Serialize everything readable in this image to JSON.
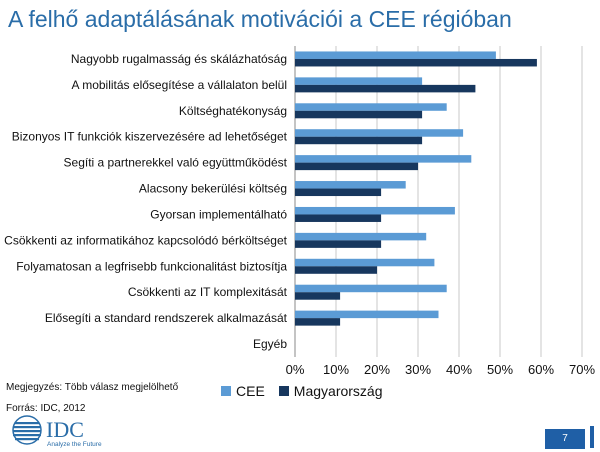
{
  "title": "A felhő adaptálásának motivációi a CEE régióban",
  "note": "Megjegyzés: Több válasz megjelölhető",
  "source": "Forrás: IDC, 2012",
  "logo": {
    "text": "IDC",
    "tagline": "Analyze the Future",
    "color": "#2a6da8"
  },
  "page_number": "7",
  "colors": {
    "cee": "#5b9bd5",
    "hungary": "#17375e",
    "title": "#2a6da8",
    "accent": "#1f5fa6"
  },
  "chart_data": {
    "type": "bar",
    "orientation": "horizontal",
    "title": "A felhő adaptálásának motivációi a CEE régióban",
    "categories": [
      "Nagyobb rugalmasság és skálázhatóság",
      "A mobilitás elősegítése a vállalaton belül",
      "Költséghatékonyság",
      "Bizonyos IT funkciók kiszervezésére ad lehetőséget",
      "Segíti a partnerekkel való együttműködést",
      "Alacsony bekerülési költség",
      "Gyorsan implementálható",
      "Csökkenti az informatikához kapcsolódó bérköltséget",
      "Folyamatosan a legfrisebb funkcionalitást biztosítja",
      "Csökkenti az IT komplexitását",
      "Elősegíti a standard rendszerek alkalmazását",
      "Egyéb"
    ],
    "series": [
      {
        "name": "CEE",
        "values": [
          49,
          31,
          37,
          41,
          43,
          27,
          39,
          32,
          34,
          37,
          35,
          0
        ]
      },
      {
        "name": "Magyarország",
        "values": [
          59,
          44,
          31,
          31,
          30,
          21,
          21,
          21,
          20,
          11,
          11,
          0
        ]
      }
    ],
    "xlim": [
      0,
      70
    ],
    "xticks": [
      "0%",
      "10%",
      "20%",
      "30%",
      "40%",
      "50%",
      "60%",
      "70%"
    ],
    "grid": true,
    "legend": "bottom"
  }
}
